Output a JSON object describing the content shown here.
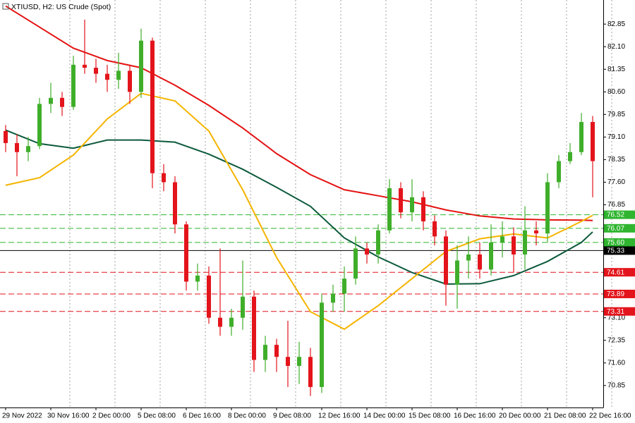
{
  "chart_data": {
    "type": "candlestick",
    "title": "XTIUSD, H2:  US Crude (Spot)",
    "categories": [
      "29 Nov 2022",
      null,
      null,
      null,
      "30 Nov 16:00",
      null,
      null,
      null,
      "2 Dec 00:00",
      null,
      null,
      null,
      "5 Dec 08:00",
      null,
      null,
      null,
      "6 Dec 16:00",
      null,
      null,
      null,
      "8 Dec 00:00",
      null,
      null,
      null,
      "9 Dec 08:00",
      null,
      null,
      null,
      "12 Dec 16:00",
      null,
      null,
      null,
      "14 Dec 00:00",
      null,
      null,
      null,
      "15 Dec 08:00",
      null,
      null,
      null,
      "16 Dec 16:00",
      null,
      null,
      null,
      "20 Dec 00:00",
      null,
      null,
      null,
      "21 Dec 08:00",
      null,
      null,
      null,
      "22 Dec 16:00"
    ],
    "open": [
      79.3,
      78.9,
      78.6,
      78.8,
      80.2,
      80.4,
      80.1,
      81.5,
      81.4,
      81.2,
      81.0,
      81.3,
      80.6,
      82.3,
      77.9,
      77.6,
      76.2,
      74.3,
      74.5,
      73.1,
      72.8,
      73.1,
      73.8,
      71.7,
      72.2,
      71.8,
      71.5,
      71.8,
      70.8,
      73.6,
      73.9,
      74.4,
      75.4,
      75.2,
      76.0,
      77.4,
      76.6,
      77.1,
      76.3,
      75.8,
      74.2,
      75.0,
      75.2,
      74.7,
      75.6,
      75.8,
      75.2,
      76.0,
      75.9,
      77.6,
      78.3,
      78.6,
      79.6
    ],
    "high": [
      79.5,
      79.2,
      79.1,
      80.4,
      80.9,
      80.6,
      81.8,
      83.0,
      81.7,
      81.5,
      81.9,
      81.5,
      82.7,
      82.4,
      78.2,
      77.8,
      76.3,
      74.9,
      74.8,
      75.4,
      73.4,
      75.0,
      74.0,
      72.5,
      72.4,
      73.0,
      72.3,
      72.1,
      73.9,
      74.2,
      74.8,
      75.8,
      75.6,
      76.2,
      77.7,
      77.6,
      77.7,
      77.3,
      76.5,
      76.0,
      75.5,
      75.8,
      75.6,
      76.2,
      76.3,
      76.1,
      76.8,
      76.3,
      77.9,
      78.5,
      78.9,
      79.9,
      79.8
    ],
    "low": [
      78.6,
      77.8,
      78.3,
      78.7,
      79.9,
      79.8,
      80.0,
      81.2,
      80.9,
      80.6,
      80.7,
      80.2,
      80.4,
      77.4,
      77.3,
      75.9,
      74.0,
      74.0,
      72.9,
      72.5,
      72.5,
      72.7,
      71.3,
      71.3,
      71.3,
      70.8,
      70.9,
      70.5,
      70.6,
      73.3,
      73.3,
      74.2,
      74.9,
      74.9,
      75.9,
      76.4,
      76.3,
      76.0,
      75.5,
      73.5,
      73.4,
      74.4,
      74.4,
      74.5,
      75.1,
      74.6,
      74.7,
      75.5,
      75.6,
      77.4,
      78.2,
      78.5,
      77.1
    ],
    "close": [
      78.9,
      78.6,
      78.8,
      80.2,
      80.4,
      80.1,
      81.5,
      81.4,
      81.2,
      81.0,
      81.3,
      80.6,
      82.3,
      77.9,
      77.6,
      76.2,
      74.3,
      74.5,
      73.1,
      72.8,
      73.1,
      73.8,
      71.7,
      72.2,
      71.8,
      71.5,
      71.8,
      70.8,
      73.6,
      73.9,
      74.4,
      75.4,
      75.2,
      76.0,
      77.4,
      76.6,
      77.1,
      76.3,
      75.8,
      74.2,
      75.0,
      75.2,
      74.7,
      75.6,
      75.8,
      75.2,
      76.0,
      75.9,
      77.6,
      78.3,
      78.6,
      79.6,
      78.3
    ],
    "up_color": "#3fae2a",
    "down_color": "#e3141b",
    "series": [
      {
        "color": "#e31212",
        "x": [
          0,
          3,
          6,
          9,
          12,
          15,
          18,
          21,
          24,
          27,
          30,
          33,
          36,
          39,
          42,
          45,
          48,
          51,
          52
        ],
        "values": [
          83.45,
          82.75,
          82.05,
          81.64,
          81.4,
          80.82,
          80.15,
          79.4,
          78.55,
          77.85,
          77.35,
          77.15,
          76.95,
          76.68,
          76.48,
          76.38,
          76.35,
          76.34,
          76.33
        ]
      },
      {
        "color": "#0c5a3c",
        "x": [
          0,
          3,
          6,
          9,
          12,
          15,
          18,
          21,
          24,
          27,
          30,
          33,
          36,
          39,
          42,
          45,
          48,
          51,
          52
        ],
        "values": [
          79.33,
          78.88,
          78.73,
          79.0,
          79.0,
          78.93,
          78.53,
          78.03,
          77.43,
          76.8,
          75.75,
          75.12,
          74.6,
          74.22,
          74.23,
          74.5,
          74.97,
          75.6,
          75.95
        ]
      },
      {
        "color": "#f5b400",
        "x": [
          0,
          3,
          6,
          9,
          12,
          15,
          18,
          21,
          24,
          27,
          30,
          33,
          36,
          39,
          42,
          45,
          48,
          51,
          52
        ],
        "values": [
          77.5,
          77.75,
          78.5,
          79.7,
          80.55,
          80.3,
          79.3,
          77.35,
          75.1,
          73.3,
          72.72,
          73.5,
          74.4,
          75.3,
          75.72,
          75.88,
          75.75,
          76.3,
          76.5
        ]
      }
    ],
    "levels": [
      {
        "value": 76.52,
        "color": "#2fb52f",
        "style": "dashed"
      },
      {
        "value": 76.07,
        "color": "#2fb52f",
        "style": "dashed"
      },
      {
        "value": 75.6,
        "label": "75.60",
        "color": "#2fb52f",
        "style": "dashed"
      },
      {
        "value": 75.33,
        "color": "#000000",
        "style": "solid"
      },
      {
        "value": 74.61,
        "color": "#e3141b",
        "style": "dashed"
      },
      {
        "value": 73.89,
        "color": "#e3141b",
        "style": "dashed"
      },
      {
        "value": 73.31,
        "color": "#e3141b",
        "style": "dashed"
      }
    ],
    "ylim": [
      70.12,
      83.65
    ],
    "yticks": [
      82.85,
      {
        "value": 82.1,
        "label": "82.10"
      },
      81.35,
      {
        "value": 80.6,
        "label": "80.60"
      },
      79.85,
      {
        "value": 79.1,
        "label": "79.10"
      },
      78.35,
      {
        "value": 77.6,
        "label": "77.60"
      },
      76.85,
      {
        "value": 73.1,
        "label": "73.10"
      },
      72.35,
      {
        "value": 71.6,
        "label": "71.60"
      },
      70.85
    ],
    "grid": true
  }
}
